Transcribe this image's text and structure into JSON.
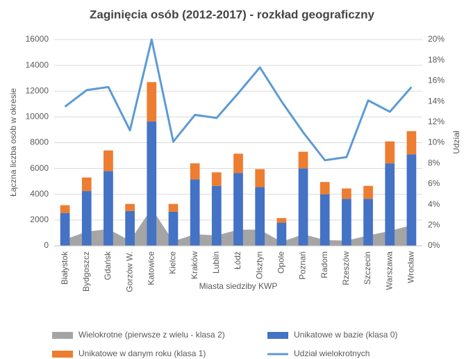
{
  "chart_data": {
    "type": "bar",
    "title": "Zaginięcia osób (2012-2017) - rozkład geograficzny",
    "y_label": "Łączna liczba osób w okresie",
    "y2_label": "Udział",
    "x_label": "Miasta siedziby KWP",
    "categories": [
      "Białystok",
      "Bydgoszcz",
      "Gdańsk",
      "Gorzów W.",
      "Katowice",
      "Kielce",
      "Kraków",
      "Lublin",
      "Łódź",
      "Olsztyn",
      "Opole",
      "Poznań",
      "Radom",
      "Rzeszów",
      "Szczecin",
      "Warszawa",
      "Wrocław"
    ],
    "series": [
      {
        "name": "Wielokrotne (pierwsze z wielu - klasa 2)",
        "type": "area",
        "color": "#a5a5a5",
        "values": [
          500,
          1100,
          1300,
          400,
          2900,
          350,
          900,
          800,
          1250,
          1250,
          300,
          900,
          450,
          400,
          800,
          1150,
          1600
        ]
      },
      {
        "name": "Unikatowe w bazie (klasa 0)",
        "type": "bar",
        "color": "#4472c4",
        "values": [
          2550,
          4250,
          5800,
          2700,
          9650,
          2650,
          5150,
          4650,
          5650,
          4550,
          1800,
          6000,
          4000,
          3650,
          3650,
          6400,
          7100
        ]
      },
      {
        "name": "Unikatowe w danym roku (klasa 1)",
        "type": "bar",
        "color": "#ed7d31",
        "values": [
          600,
          1050,
          1600,
          550,
          3050,
          600,
          1250,
          1050,
          1500,
          1400,
          350,
          1300,
          950,
          800,
          1000,
          1700,
          1800
        ]
      },
      {
        "name": "Udział wielokrotnych",
        "type": "line",
        "axis": "y2",
        "color": "#5b9bd5",
        "values": [
          13.5,
          15.1,
          15.4,
          11.2,
          20.0,
          10.1,
          12.7,
          12.4,
          14.8,
          17.3,
          14.0,
          11.0,
          8.3,
          8.6,
          14.1,
          13.0,
          15.4
        ]
      }
    ],
    "ylim": [
      0,
      16000
    ],
    "yticks": [
      0,
      2000,
      4000,
      6000,
      8000,
      10000,
      12000,
      14000,
      16000
    ],
    "y2lim": [
      0,
      20
    ],
    "y2ticks": [
      {
        "value": 0,
        "label": "0%"
      },
      {
        "value": 2,
        "label": "2%"
      },
      {
        "value": 4,
        "label": "4%"
      },
      {
        "value": 6,
        "label": "6%"
      },
      {
        "value": 8,
        "label": "8%"
      },
      {
        "value": 10,
        "label": "10%"
      },
      {
        "value": 12,
        "label": "12%"
      },
      {
        "value": 14,
        "label": "14%"
      },
      {
        "value": 16,
        "label": "16%"
      },
      {
        "value": 18,
        "label": "18%"
      },
      {
        "value": 20,
        "label": "20%"
      }
    ],
    "grid": true,
    "legend": "bottom"
  }
}
